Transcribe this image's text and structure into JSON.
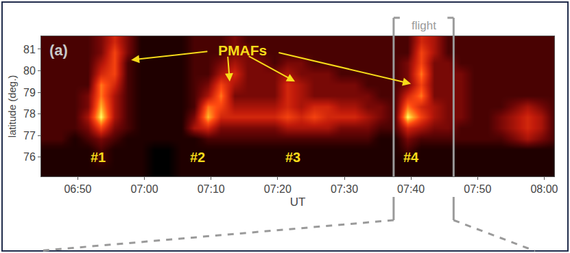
{
  "chart_data": {
    "type": "heatmap",
    "panel": "(a)",
    "xlabel": "UT",
    "ylabel": "latitude (deg.)",
    "xlim": [
      404.5,
      481.5
    ],
    "ylim": [
      75.1,
      81.6
    ],
    "xticks": [
      {
        "value": 410,
        "label": "06:50"
      },
      {
        "value": 420,
        "label": "07:00"
      },
      {
        "value": 430,
        "label": "07:10"
      },
      {
        "value": 440,
        "label": "07:20"
      },
      {
        "value": 450,
        "label": "07:30"
      },
      {
        "value": 460,
        "label": "07:40"
      },
      {
        "value": 470,
        "label": "07:50"
      },
      {
        "value": 480,
        "label": "08:00"
      }
    ],
    "yticks": [
      76,
      77,
      78,
      79,
      80,
      81
    ],
    "grid": false,
    "x": [
      405.5,
      407.5,
      409.5,
      411.5,
      413.5,
      415.5,
      417.5,
      419.5,
      421.5,
      423.5,
      425.5,
      427.5,
      429.5,
      431.5,
      433.5,
      435.5,
      437.5,
      439.5,
      441.5,
      443.5,
      445.5,
      447.5,
      449.5,
      451.5,
      453.5,
      455.5,
      457.5,
      459.5,
      461.5,
      463.5,
      465.5,
      467.5,
      469.5,
      471.5,
      473.5,
      475.5,
      477.5,
      479.5,
      481.5
    ],
    "y": [
      75.35,
      75.85,
      76.35,
      76.85,
      77.35,
      77.85,
      78.35,
      78.85,
      79.35,
      79.85,
      80.35,
      80.85,
      81.35
    ],
    "z": [
      [
        1,
        1,
        1,
        1,
        1,
        1,
        1,
        1,
        0,
        0,
        1,
        1,
        1,
        1,
        1,
        1,
        1,
        1,
        1,
        1,
        1,
        1,
        1,
        1,
        1,
        1,
        1,
        1,
        1,
        1,
        1,
        1,
        1,
        1,
        1,
        1,
        1,
        1,
        1
      ],
      [
        1,
        1,
        1,
        1,
        2,
        1,
        1,
        1,
        0,
        0,
        1,
        1,
        1,
        1,
        1,
        1,
        1,
        1,
        1,
        1,
        1,
        1,
        1,
        1,
        1,
        1,
        1,
        1,
        1,
        1,
        1,
        1,
        1,
        1,
        1,
        1,
        1,
        1,
        1
      ],
      [
        1,
        1,
        1,
        1,
        2,
        1,
        1,
        1,
        0,
        0,
        1,
        1,
        1,
        1,
        1,
        1,
        1,
        1,
        1,
        1,
        1,
        1,
        1,
        1,
        1,
        1,
        1,
        2,
        1,
        1,
        1,
        1,
        1,
        1,
        1,
        1,
        1,
        1,
        1
      ],
      [
        2,
        2,
        1,
        2,
        3,
        2,
        1,
        1,
        1,
        1,
        1,
        1,
        2,
        2,
        2,
        2,
        2,
        2,
        2,
        2,
        2,
        2,
        2,
        2,
        2,
        1,
        1,
        3,
        2,
        2,
        2,
        2,
        2,
        2,
        2,
        3,
        4,
        3,
        2
      ],
      [
        2,
        2,
        2,
        3,
        6,
        3,
        2,
        1,
        1,
        1,
        1,
        4,
        5,
        3,
        3,
        3,
        3,
        3,
        4,
        4,
        4,
        4,
        3,
        3,
        3,
        2,
        2,
        5,
        4,
        3,
        3,
        2,
        2,
        2,
        3,
        4,
        5,
        4,
        2
      ],
      [
        2,
        2,
        2,
        4,
        9,
        4,
        2,
        1,
        1,
        1,
        1,
        3,
        8,
        5,
        5,
        5,
        5,
        5,
        6,
        5,
        6,
        5,
        5,
        5,
        4,
        3,
        2,
        9,
        6,
        4,
        3,
        3,
        2,
        2,
        3,
        4,
        5,
        4,
        2
      ],
      [
        2,
        2,
        2,
        3,
        8,
        4,
        2,
        1,
        1,
        1,
        1,
        2,
        7,
        6,
        4,
        4,
        4,
        4,
        5,
        4,
        5,
        5,
        4,
        4,
        3,
        3,
        2,
        7,
        5,
        4,
        3,
        3,
        2,
        2,
        2,
        3,
        4,
        3,
        2
      ],
      [
        2,
        2,
        2,
        3,
        7,
        4,
        2,
        1,
        1,
        1,
        1,
        2,
        4,
        7,
        3,
        3,
        3,
        3,
        5,
        4,
        3,
        3,
        3,
        3,
        3,
        2,
        2,
        5,
        7,
        3,
        3,
        3,
        2,
        2,
        2,
        2,
        2,
        2,
        2
      ],
      [
        2,
        2,
        2,
        2,
        7,
        5,
        2,
        1,
        1,
        1,
        1,
        2,
        3,
        6,
        4,
        3,
        3,
        3,
        5,
        4,
        3,
        3,
        3,
        3,
        2,
        2,
        2,
        3,
        6,
        3,
        3,
        3,
        2,
        2,
        2,
        2,
        2,
        2,
        2
      ],
      [
        2,
        2,
        2,
        2,
        5,
        6,
        2,
        1,
        1,
        1,
        1,
        2,
        2,
        4,
        5,
        3,
        3,
        3,
        4,
        3,
        3,
        3,
        2,
        2,
        2,
        2,
        2,
        3,
        7,
        3,
        3,
        3,
        2,
        2,
        2,
        2,
        2,
        2,
        2
      ],
      [
        2,
        2,
        2,
        2,
        4,
        6,
        2,
        1,
        1,
        1,
        1,
        2,
        2,
        3,
        4,
        3,
        3,
        2,
        3,
        3,
        2,
        2,
        2,
        2,
        2,
        2,
        2,
        3,
        6,
        3,
        3,
        2,
        2,
        2,
        2,
        2,
        2,
        2,
        2
      ],
      [
        2,
        2,
        2,
        2,
        3,
        6,
        3,
        1,
        1,
        1,
        1,
        2,
        2,
        2,
        3,
        3,
        2,
        2,
        2,
        2,
        2,
        2,
        2,
        2,
        2,
        2,
        2,
        2,
        6,
        4,
        2,
        2,
        2,
        2,
        2,
        2,
        2,
        2,
        2
      ],
      [
        2,
        2,
        2,
        2,
        3,
        5,
        3,
        1,
        1,
        1,
        1,
        2,
        2,
        2,
        3,
        2,
        2,
        2,
        2,
        2,
        2,
        2,
        2,
        2,
        2,
        2,
        2,
        2,
        5,
        4,
        2,
        2,
        2,
        2,
        2,
        2,
        2,
        2,
        2
      ]
    ],
    "annotations": [
      {
        "text": "PMAFs",
        "x": 434.7,
        "y": 80.95,
        "arrows": [
          {
            "from": [
              429.6,
              80.9
            ],
            "to": [
              418.0,
              80.5
            ]
          },
          {
            "from": [
              432.5,
              80.7
            ],
            "to": [
              432.8,
              79.5
            ]
          },
          {
            "from": [
              435.5,
              80.7
            ],
            "to": [
              442.6,
              79.5
            ]
          },
          {
            "from": [
              440.0,
              80.85
            ],
            "to": [
              460.0,
              79.4
            ]
          }
        ]
      },
      {
        "text": "#1",
        "x": 413.0,
        "y": 76.0
      },
      {
        "text": "#2",
        "x": 428.0,
        "y": 76.0
      },
      {
        "text": "#3",
        "x": 442.3,
        "y": 76.0
      },
      {
        "text": "#4",
        "x": 460.0,
        "y": 76.0
      }
    ],
    "flight": {
      "text": "flight",
      "x": [
        457.4,
        466.4
      ]
    }
  }
}
